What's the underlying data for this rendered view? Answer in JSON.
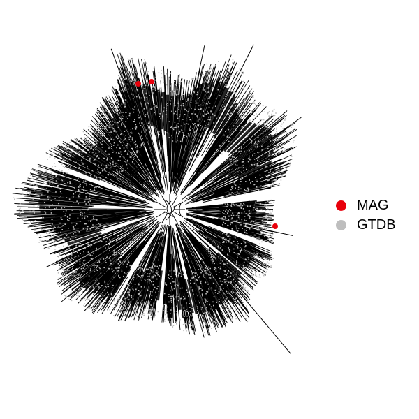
{
  "figure": {
    "background": "#ffffff",
    "branch_color": "#000000",
    "tip_color": "#bdbdbd",
    "layout": "circular"
  },
  "legend": {
    "items": [
      {
        "label": "MAG",
        "color": "#e8000b"
      },
      {
        "label": "GTDB",
        "color": "#bebebe"
      }
    ]
  }
}
